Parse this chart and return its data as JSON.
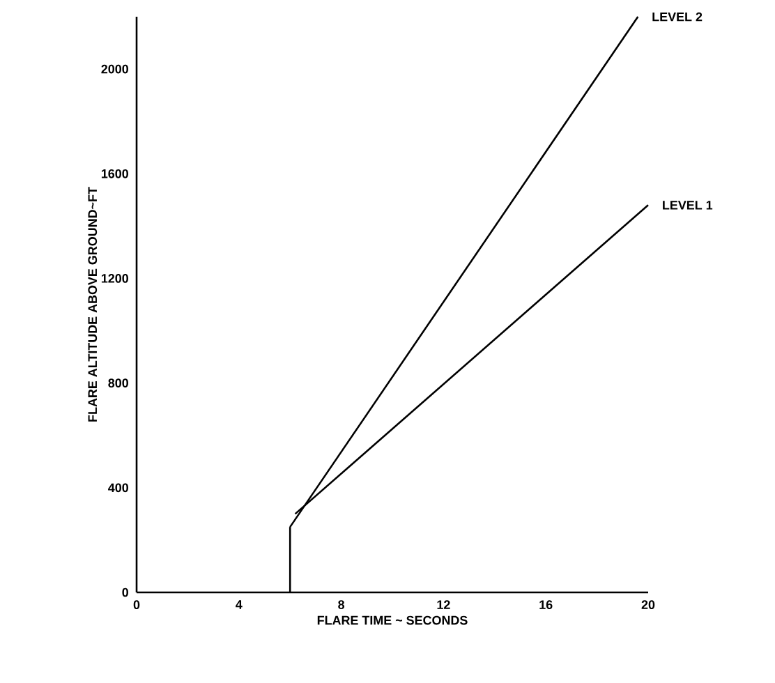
{
  "chart_data": {
    "type": "line",
    "xlabel": "FLARE TIME ~ SECONDS",
    "ylabel": "FLARE ALTITUDE ABOVE GROUND~FT",
    "xlim": [
      0,
      20
    ],
    "ylim": [
      0,
      2200
    ],
    "xticks": [
      0,
      4,
      8,
      12,
      16,
      20
    ],
    "yticks": [
      0,
      400,
      800,
      1200,
      1600,
      2000
    ],
    "grid": false,
    "legend": "right",
    "marker": "none",
    "line_style": "solid",
    "series": [
      {
        "color": "#000000",
        "x": [
          6,
          6
        ],
        "values": [
          0,
          250
        ]
      },
      {
        "name": "LEVEL 2",
        "color": "#000000",
        "x": [
          6,
          19.6
        ],
        "values": [
          250,
          2200
        ]
      },
      {
        "name": "LEVEL 1",
        "color": "#000000",
        "x": [
          6.2,
          20
        ],
        "values": [
          300,
          1480
        ]
      }
    ]
  }
}
